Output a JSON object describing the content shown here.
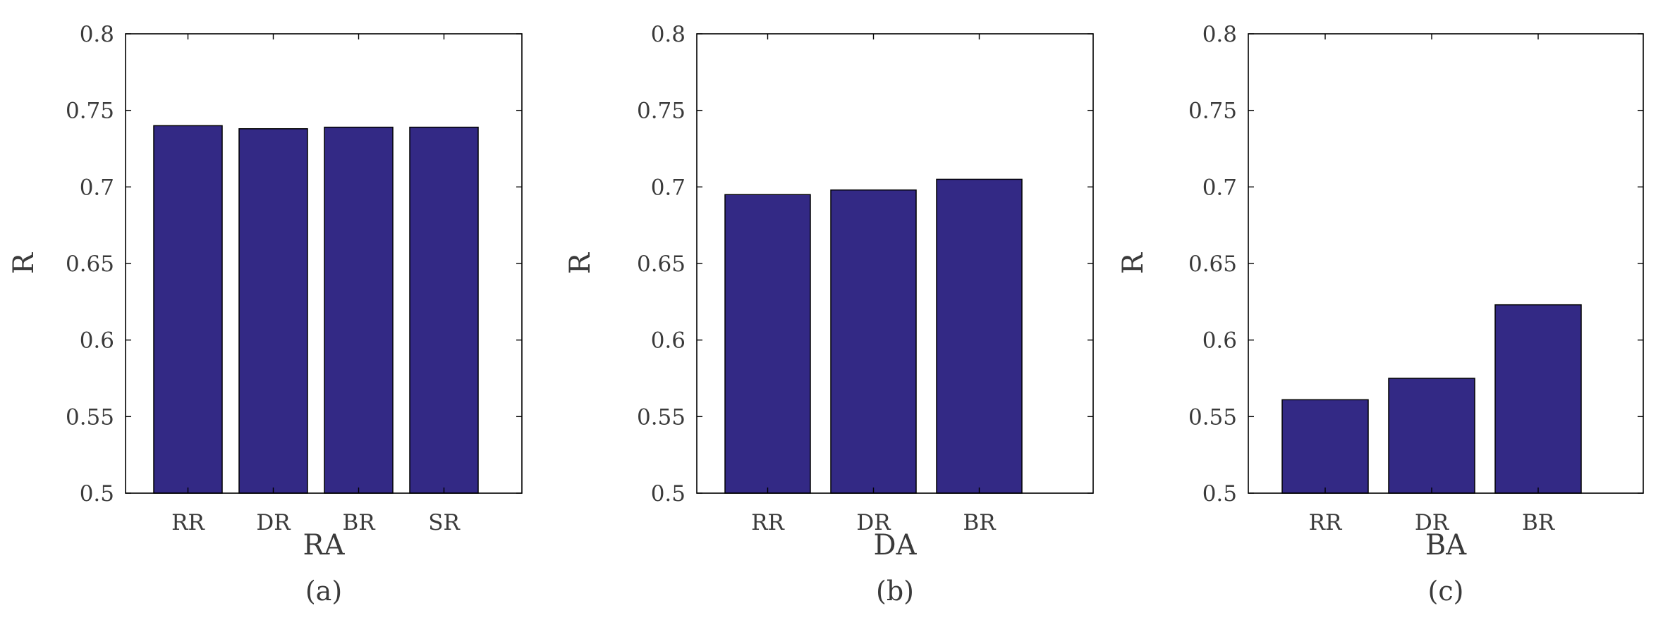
{
  "chart_data": [
    {
      "type": "bar",
      "caption": "(a)",
      "categories": [
        "RR",
        "DR",
        "BR",
        "SR"
      ],
      "values": [
        0.74,
        0.738,
        0.739,
        0.739
      ],
      "xlabel": "RA",
      "ylabel": "R",
      "ylim": [
        0.5,
        0.8
      ],
      "yticks": [
        "0.5",
        "0.55",
        "0.6",
        "0.65",
        "0.7",
        "0.75",
        "0.8"
      ],
      "grid": false,
      "bar_color": "#332985"
    },
    {
      "type": "bar",
      "caption": "(b)",
      "categories": [
        "RR",
        "DR",
        "BR"
      ],
      "values": [
        0.695,
        0.698,
        0.705
      ],
      "xlabel": "DA",
      "ylabel": "R",
      "ylim": [
        0.5,
        0.8
      ],
      "yticks": [
        "0.5",
        "0.55",
        "0.6",
        "0.65",
        "0.7",
        "0.75",
        "0.8"
      ],
      "grid": false,
      "bar_color": "#332985"
    },
    {
      "type": "bar",
      "caption": "(c)",
      "categories": [
        "RR",
        "DR",
        "BR"
      ],
      "values": [
        0.561,
        0.575,
        0.623
      ],
      "xlabel": "BA",
      "ylabel": "R",
      "ylim": [
        0.5,
        0.8
      ],
      "yticks": [
        "0.5",
        "0.55",
        "0.6",
        "0.65",
        "0.7",
        "0.75",
        "0.8"
      ],
      "grid": false,
      "bar_color": "#332985"
    }
  ]
}
